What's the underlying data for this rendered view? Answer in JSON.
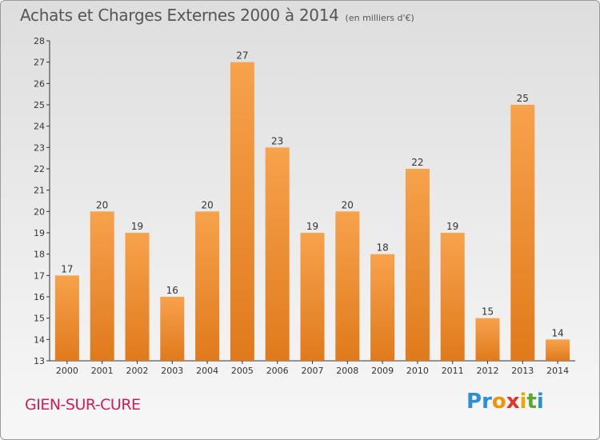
{
  "title": "Achats et Charges Externes 2000 à 2014",
  "subtitle": "(en milliers d'€)",
  "commune": "GIEN-SUR-CURE",
  "logo": {
    "text": "Proxiti",
    "letters": [
      {
        "ch": "P",
        "color": "#2a8fd6"
      },
      {
        "ch": "r",
        "color": "#2a8fd6"
      },
      {
        "ch": "o",
        "color": "#f39200"
      },
      {
        "ch": "x",
        "color": "#e6332a"
      },
      {
        "ch": "i",
        "color": "#e6a700"
      },
      {
        "ch": "t",
        "color": "#5aa832"
      },
      {
        "ch": "i",
        "color": "#2a8fd6"
      }
    ]
  },
  "chart_data": {
    "type": "bar",
    "categories": [
      "2000",
      "2001",
      "2002",
      "2003",
      "2004",
      "2005",
      "2006",
      "2007",
      "2008",
      "2009",
      "2010",
      "2011",
      "2012",
      "2013",
      "2014"
    ],
    "values": [
      17,
      20,
      19,
      16,
      20,
      27,
      23,
      19,
      20,
      18,
      22,
      19,
      15,
      25,
      14
    ],
    "title": "Achats et Charges Externes 2000 à 2014",
    "ylim": [
      13,
      28
    ],
    "yticks": [
      13,
      14,
      15,
      16,
      17,
      18,
      19,
      20,
      21,
      22,
      23,
      24,
      25,
      26,
      27,
      28
    ],
    "grid": false,
    "bar_color": "#f0953a"
  }
}
